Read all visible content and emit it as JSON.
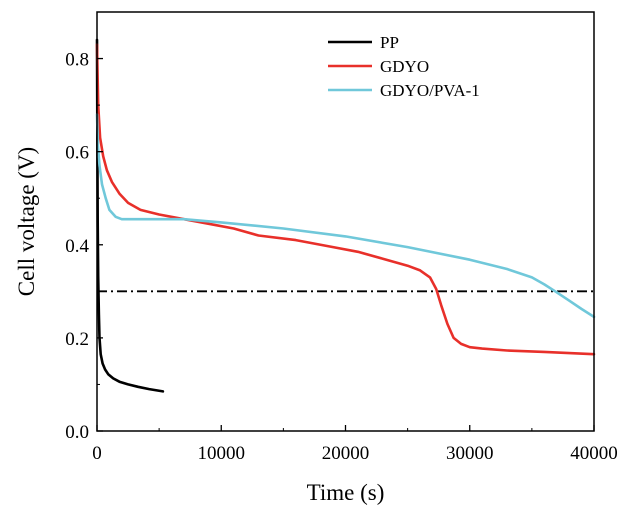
{
  "chart_data": {
    "type": "line",
    "xlabel": "Time (s)",
    "ylabel": "Cell voltage (V)",
    "xlim": [
      0,
      40000
    ],
    "ylim": [
      0,
      0.9
    ],
    "x_ticks": [
      0,
      10000,
      20000,
      30000,
      40000
    ],
    "y_ticks": [
      0.0,
      0.2,
      0.4,
      0.6,
      0.8
    ],
    "x_tick_labels": [
      "0",
      "10000",
      "20000",
      "30000",
      "40000"
    ],
    "y_tick_labels": [
      "0.0",
      "0.2",
      "0.4",
      "0.6",
      "0.8"
    ],
    "grid": false,
    "legend": "top-right",
    "series": [
      {
        "name": "PP",
        "color": "#000000",
        "x": [
          0,
          30,
          60,
          100,
          150,
          200,
          300,
          450,
          650,
          900,
          1300,
          1800,
          2500,
          3300,
          4200,
          5300
        ],
        "y": [
          0.84,
          0.6,
          0.45,
          0.33,
          0.25,
          0.2,
          0.165,
          0.145,
          0.132,
          0.122,
          0.113,
          0.106,
          0.1,
          0.095,
          0.09,
          0.085
        ]
      },
      {
        "name": "GDYO",
        "color": "#e8302a",
        "x": [
          0,
          100,
          250,
          500,
          800,
          1200,
          1800,
          2500,
          3500,
          5000,
          7000,
          9000,
          11000,
          13000,
          16000,
          19000,
          21000,
          23000,
          25000,
          26000,
          26800,
          27300,
          27700,
          28200,
          28700,
          29300,
          30000,
          31000,
          33000,
          36000,
          40000
        ],
        "y": [
          0.83,
          0.7,
          0.63,
          0.59,
          0.56,
          0.535,
          0.51,
          0.49,
          0.475,
          0.465,
          0.455,
          0.445,
          0.435,
          0.42,
          0.41,
          0.395,
          0.385,
          0.37,
          0.355,
          0.345,
          0.33,
          0.305,
          0.27,
          0.23,
          0.2,
          0.187,
          0.18,
          0.177,
          0.173,
          0.17,
          0.165
        ]
      },
      {
        "name": "GDYO/PVA-1",
        "color": "#70c8da",
        "x": [
          0,
          80,
          200,
          400,
          700,
          1000,
          1500,
          2000,
          2500,
          4000,
          7000,
          10000,
          15000,
          20000,
          25000,
          30000,
          33000,
          35000,
          36000,
          37000,
          38000,
          39000,
          40000
        ],
        "y": [
          0.68,
          0.61,
          0.57,
          0.53,
          0.5,
          0.475,
          0.46,
          0.455,
          0.455,
          0.455,
          0.455,
          0.448,
          0.435,
          0.418,
          0.395,
          0.368,
          0.348,
          0.33,
          0.315,
          0.298,
          0.28,
          0.262,
          0.245
        ]
      }
    ],
    "reference_line": {
      "y": 0.3,
      "style": "dash-dot",
      "color": "#000000"
    }
  }
}
